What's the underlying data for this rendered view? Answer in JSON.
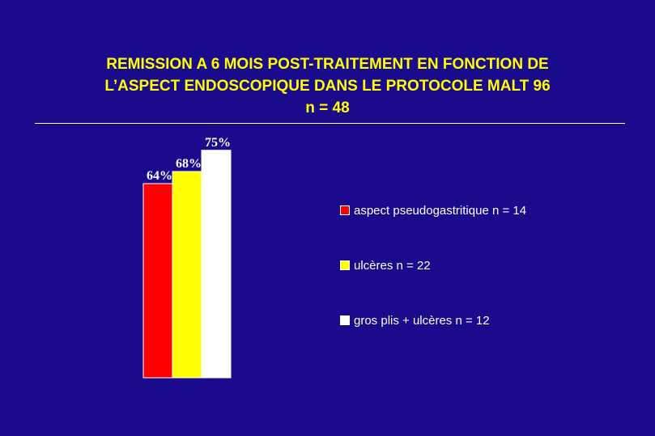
{
  "title_lines": [
    "REMISSION A 6 MOIS POST-TRAITEMENT EN FONCTION DE",
    "L’ASPECT ENDOSCOPIQUE DANS LE PROTOCOLE MALT 96",
    "n = 48"
  ],
  "colors": {
    "background": "#1a0a8c",
    "title": "#ffff00",
    "text": "#ffffff"
  },
  "chart_data": {
    "type": "bar",
    "title": "REMISSION A 6 MOIS POST-TRAITEMENT EN FONCTION DE L’ASPECT ENDOSCOPIQUE DANS LE PROTOCOLE MALT 96 n = 48",
    "ylim": [
      0,
      100
    ],
    "grid": false,
    "legend_position": "right",
    "series": [
      {
        "name": "aspect  pseudogastritique  n = 14",
        "value": 64,
        "label": "64%",
        "color": "#ff0000"
      },
      {
        "name": "ulcères n = 22",
        "value": 68,
        "label": "68%",
        "color": "#ffff00"
      },
      {
        "name": "gros plis + ulcères n = 12",
        "value": 75,
        "label": "75%",
        "color": "#ffffff"
      }
    ]
  }
}
